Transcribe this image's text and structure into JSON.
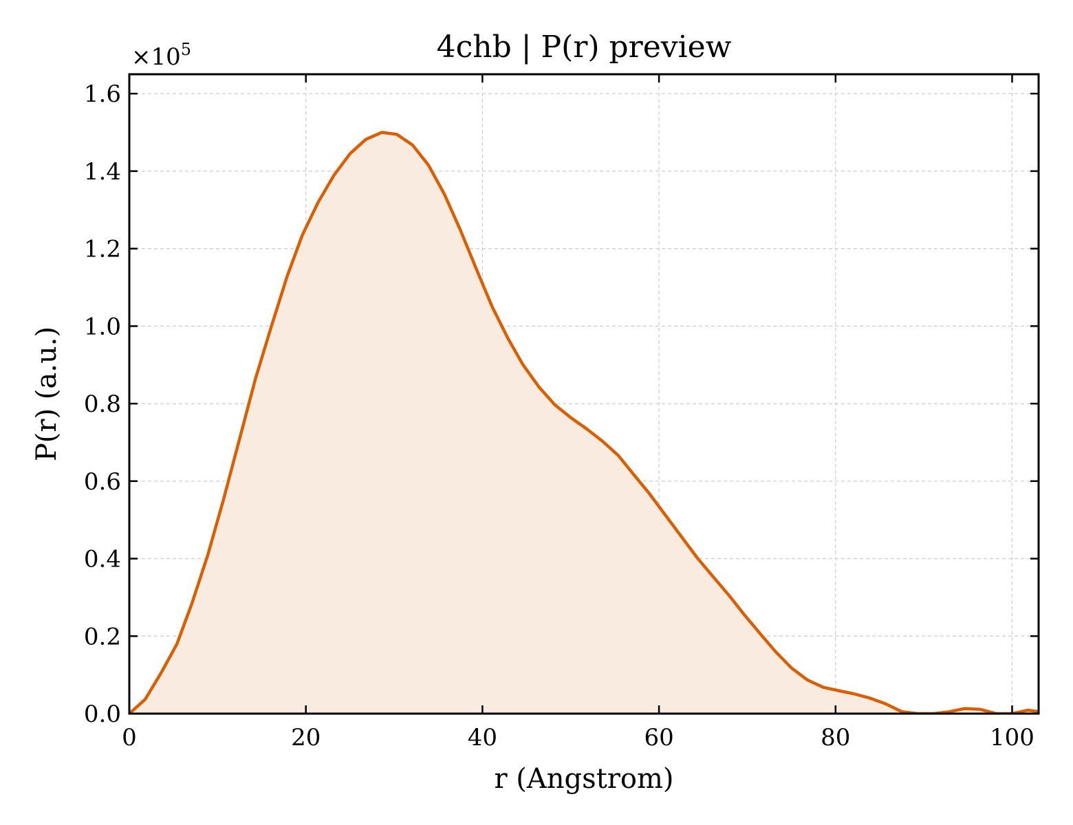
{
  "chart_data": {
    "type": "area",
    "title": "4chb | P(r) preview",
    "xlabel": "r (Angstrom)",
    "ylabel": "P(r) (a.u.)",
    "y_offset_text": {
      "base": "×10",
      "exponent": "5"
    },
    "xlim": [
      0,
      103
    ],
    "ylim": [
      0,
      165000
    ],
    "x_ticks": [
      0,
      20,
      40,
      60,
      80,
      100
    ],
    "x_tick_labels": [
      "0",
      "20",
      "40",
      "60",
      "80",
      "100"
    ],
    "y_ticks": [
      0,
      20000,
      40000,
      60000,
      80000,
      100000,
      120000,
      140000,
      160000
    ],
    "y_tick_labels": [
      "0.0",
      "0.2",
      "0.4",
      "0.6",
      "0.8",
      "1.0",
      "1.2",
      "1.4",
      "1.6"
    ],
    "grid": true,
    "colors": {
      "line": "#d95f02",
      "fill": "#f9ebe0",
      "grid": "#cccccc",
      "axes": "#000000"
    },
    "series": [
      {
        "x": [
          0,
          1.8,
          3.6,
          5.4,
          7.1,
          8.9,
          10.7,
          12.5,
          14.3,
          16.1,
          17.9,
          19.6,
          21.4,
          23.2,
          25,
          26.8,
          28.6,
          30.3,
          32.1,
          33.9,
          35.7,
          37.5,
          39.3,
          41.1,
          42.9,
          44.6,
          46.4,
          48.2,
          50,
          51.8,
          53.6,
          55.4,
          57.1,
          58.9,
          60.7,
          62.5,
          64.3,
          66.1,
          67.9,
          69.6,
          71.4,
          73.2,
          75,
          76.8,
          78.6,
          80.4,
          82.1,
          83.9,
          85.7,
          87.5,
          89.3,
          91.1,
          92.9,
          94.6,
          96.4,
          98.2,
          100,
          101.8,
          103
        ],
        "y": [
          0,
          3700,
          10500,
          18000,
          28500,
          41000,
          55500,
          71000,
          86500,
          100000,
          113000,
          123500,
          132000,
          139000,
          144500,
          148200,
          150000,
          149500,
          146700,
          141500,
          134000,
          124800,
          114800,
          105000,
          96800,
          90000,
          84300,
          79700,
          76400,
          73500,
          70300,
          66600,
          61800,
          56800,
          51300,
          45800,
          40300,
          35400,
          30600,
          25700,
          20800,
          16000,
          11800,
          8700,
          6800,
          5900,
          5100,
          4000,
          2500,
          500,
          0,
          0,
          500,
          1300,
          1100,
          0,
          0,
          900,
          500
        ]
      }
    ]
  }
}
